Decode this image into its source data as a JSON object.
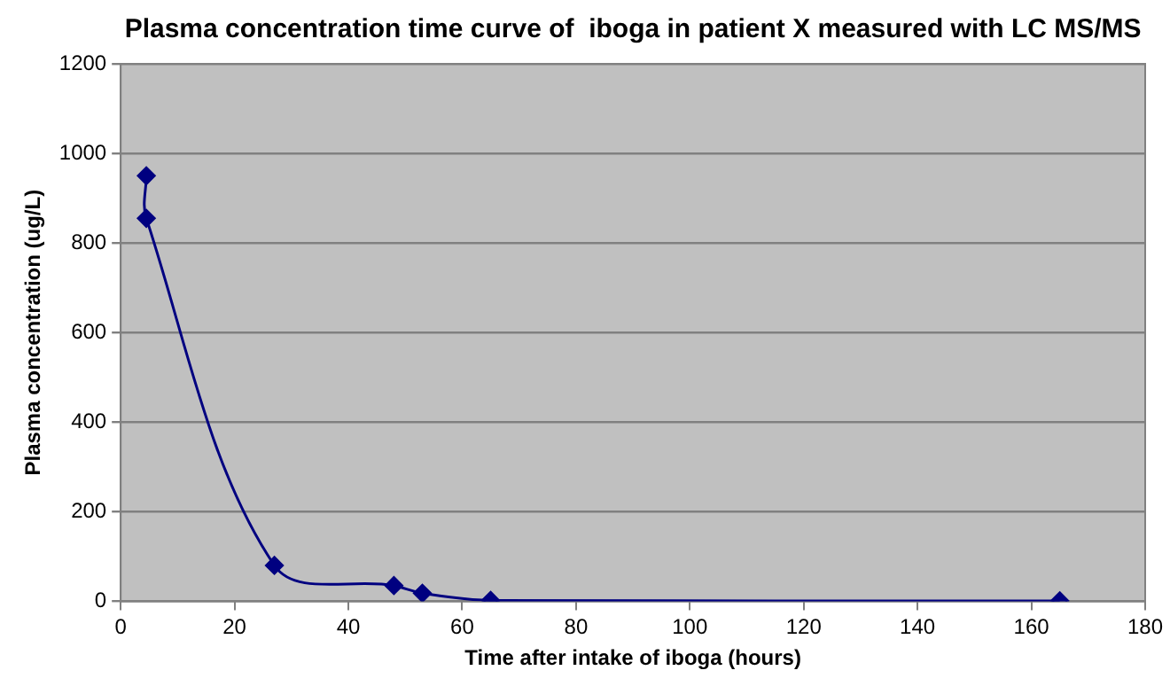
{
  "chart_data": {
    "type": "line",
    "title": "Plasma concentration time curve of  iboga in patient X measured with LC MS/MS",
    "xlabel": "Time after intake of iboga (hours)",
    "ylabel": "Plasma concentration (ug/L)",
    "x": [
      4.5,
      4.5,
      27,
      48,
      53,
      65,
      165
    ],
    "series": [
      {
        "color": "#000080",
        "values": [
          950,
          855,
          80,
          35,
          18,
          2,
          1
        ]
      }
    ],
    "xlim": [
      0,
      180
    ],
    "xticks": [
      0,
      20,
      40,
      60,
      80,
      100,
      120,
      140,
      160,
      180
    ],
    "ylim": [
      0,
      1200
    ],
    "yticks": [
      0,
      200,
      400,
      600,
      800,
      1000,
      1200
    ],
    "grid": "y",
    "legend": false,
    "marker": "diamond",
    "line_style": "solid"
  }
}
